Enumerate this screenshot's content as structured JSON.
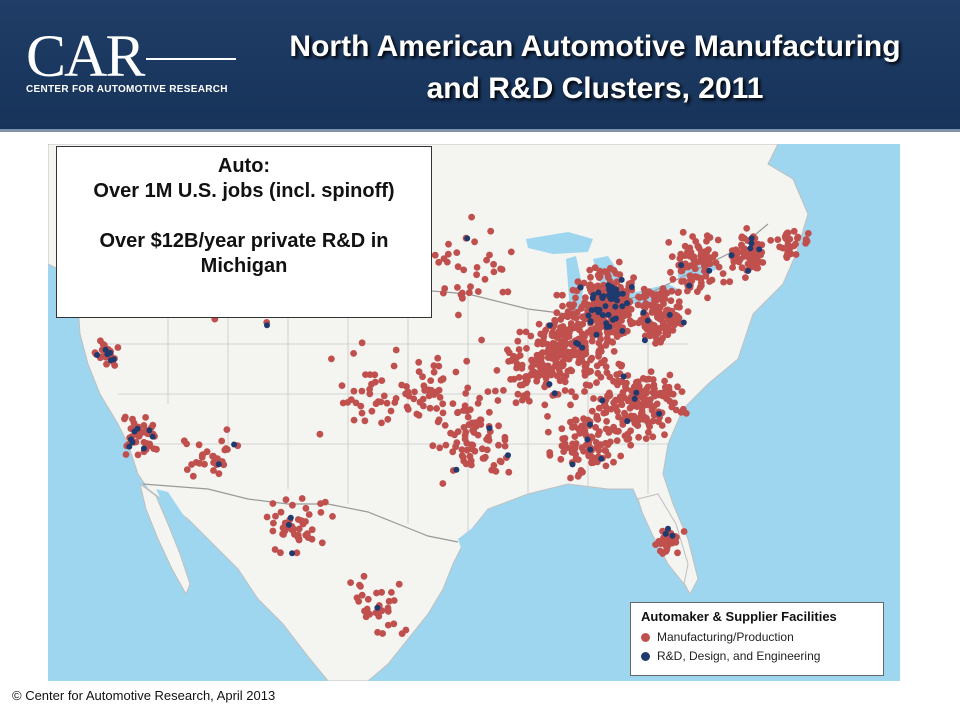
{
  "header": {
    "logo_text": "CAR",
    "logo_subtitle": "CENTER FOR AUTOMOTIVE RESEARCH",
    "title_line1": "North American Automotive Manufacturing",
    "title_line2": "and R&D Clusters, 2011"
  },
  "callout": {
    "line1": "Auto:",
    "line2": "Over 1M U.S. jobs  (incl. spinoff)",
    "line3": "Over $12B/year private R&D in",
    "line4": "Michigan"
  },
  "legend": {
    "title": "Automaker & Supplier Facilities",
    "items": [
      {
        "label": "Manufacturing/Production",
        "color": "#c0504d"
      },
      {
        "label": "R&D, Design, and Engineering",
        "color": "#1f3a6e"
      }
    ]
  },
  "copyright": "© Center for Automotive Research, April 2013",
  "colors": {
    "header_bg": "#1f3d66",
    "ocean": "#9fd6ef",
    "land": "#f4f4f1",
    "manufacturing": "#c0504d",
    "rnd": "#1f3a6e"
  }
}
